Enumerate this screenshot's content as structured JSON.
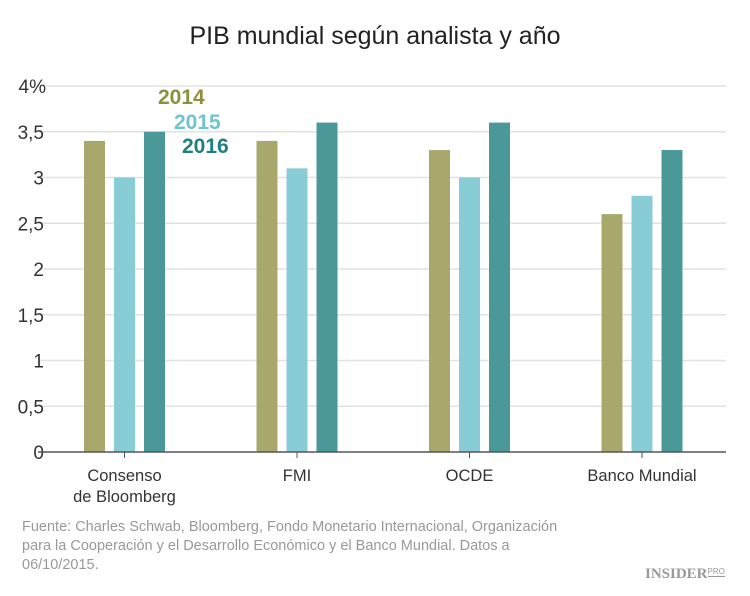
{
  "chart_data": {
    "type": "bar",
    "title": "PIB mundial según analista y año",
    "categories": [
      [
        "Consenso",
        "de Bloomberg"
      ],
      [
        "FMI"
      ],
      [
        "OCDE"
      ],
      [
        "Banco Mundial"
      ]
    ],
    "series": [
      {
        "name": "2014",
        "values": [
          3.4,
          3.4,
          3.3,
          2.6
        ],
        "color": "#a8a86c",
        "label_color": "#8f8f3e"
      },
      {
        "name": "2015",
        "values": [
          3.0,
          3.1,
          3.0,
          2.8
        ],
        "color": "#88ccd6",
        "label_color": "#6ec4d0"
      },
      {
        "name": "2016",
        "values": [
          3.5,
          3.6,
          3.6,
          3.3
        ],
        "color": "#4a9898",
        "label_color": "#1e8080"
      }
    ],
    "yticks": [
      "0",
      "0,5",
      "1",
      "1,5",
      "2",
      "2,5",
      "3",
      "3,5",
      "4%"
    ],
    "ylim": [
      0,
      4
    ],
    "grid": true,
    "legend_placement": "top-left"
  },
  "source": "Fuente: Charles Schwab, Bloomberg, Fondo Monetario Internacional, Organización para la Cooperación y el Desarrollo Económico y el Banco Mundial. Datos a  06/10/2015.",
  "logo": {
    "main": "INSIDER",
    "sub": "PRO"
  }
}
